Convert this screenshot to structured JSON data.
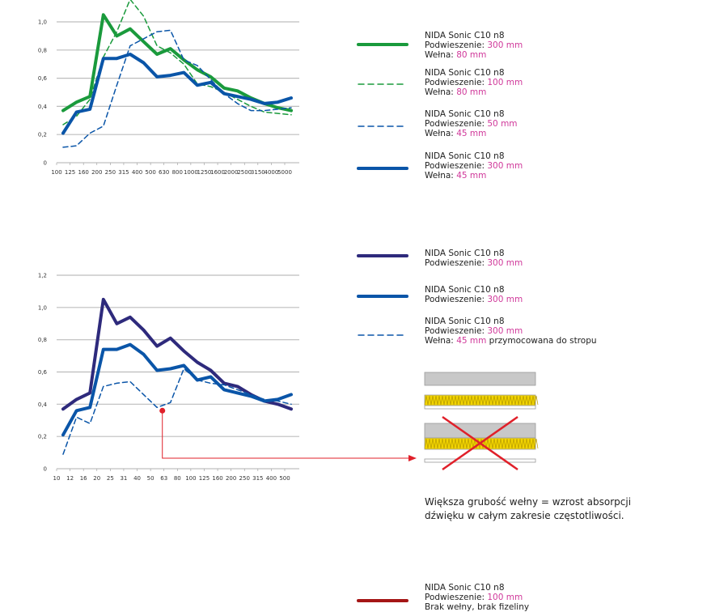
{
  "colors": {
    "green": "#1a9a3c",
    "blue": "#0a55a8",
    "purple": "#2e2a7c",
    "red": "#e0202a",
    "darkred": "#a51616",
    "magenta": "#d0389a",
    "grid": "#bdbdbd"
  },
  "chart_data": [
    {
      "type": "line",
      "ylim": [
        0,
        1.0
      ],
      "yticks": [
        "0",
        "0,2",
        "0,4",
        "0,6",
        "0,8",
        "1,0"
      ],
      "categories": [
        "100",
        "125",
        "160",
        "200",
        "250",
        "315",
        "400",
        "500",
        "630",
        "800",
        "1000",
        "1250",
        "1600",
        "2000",
        "2500",
        "3150",
        "4000",
        "5000"
      ],
      "series": [
        {
          "name": "NIDA Sonic C10 n8 / Podwieszenie: 300 mm / Wełna: 80 mm",
          "color": "green",
          "style": "solid",
          "width": 4,
          "values": [
            0.37,
            0.43,
            0.47,
            1.05,
            0.9,
            0.95,
            0.86,
            0.77,
            0.81,
            0.73,
            0.66,
            0.61,
            0.53,
            0.51,
            0.46,
            0.42,
            0.39,
            0.37
          ]
        },
        {
          "name": "NIDA Sonic C10 n8 / Podwieszenie: 100 mm / Wełna: 80 mm",
          "color": "green",
          "style": "dashed",
          "width": 1.5,
          "values": [
            0.27,
            0.33,
            0.45,
            0.75,
            0.93,
            1.16,
            1.04,
            0.83,
            0.78,
            0.7,
            0.56,
            0.54,
            0.5,
            0.45,
            0.4,
            0.36,
            0.35,
            0.34
          ]
        },
        {
          "name": "NIDA Sonic C10 n8 / Podwieszenie: 50 mm / Wełna: 45 mm",
          "color": "blue",
          "style": "dashed",
          "width": 1.5,
          "values": [
            0.11,
            0.12,
            0.21,
            0.26,
            0.55,
            0.83,
            0.88,
            0.93,
            0.94,
            0.73,
            0.69,
            0.59,
            0.49,
            0.42,
            0.37,
            0.37,
            0.38,
            0.39
          ]
        },
        {
          "name": "NIDA Sonic C10 n8 / Podwieszenie: 300 mm / Wełna: 45 mm",
          "color": "blue",
          "style": "solid",
          "width": 4,
          "values": [
            0.21,
            0.36,
            0.38,
            0.74,
            0.74,
            0.77,
            0.71,
            0.61,
            0.62,
            0.64,
            0.55,
            0.57,
            0.49,
            0.47,
            0.45,
            0.42,
            0.43,
            0.46
          ]
        }
      ]
    },
    {
      "type": "line",
      "ylim": [
        0,
        1.2
      ],
      "yticks": [
        "0",
        "0,2",
        "0,4",
        "0,6",
        "0,8",
        "1,0",
        "1,2"
      ],
      "categories": [
        "10",
        "12",
        "16",
        "20",
        "25",
        "31",
        "40",
        "50",
        "63",
        "80",
        "100",
        "125",
        "160",
        "200",
        "250",
        "315",
        "400",
        "500"
      ],
      "annotation": {
        "category_index": 8,
        "value": 0.36,
        "note": "red marker linked by arrow to diagram"
      },
      "series": [
        {
          "name": "NIDA Sonic C10 n8 / Podwieszenie: 300 mm",
          "color": "purple",
          "style": "solid",
          "width": 4,
          "values": [
            0.37,
            0.43,
            0.47,
            1.05,
            0.9,
            0.94,
            0.86,
            0.76,
            0.81,
            0.73,
            0.66,
            0.61,
            0.53,
            0.51,
            0.46,
            0.42,
            0.4,
            0.37
          ]
        },
        {
          "name": "NIDA Sonic C10 n8 / Podwieszenie: 300 mm",
          "color": "blue",
          "style": "solid",
          "width": 4,
          "values": [
            0.21,
            0.36,
            0.38,
            0.74,
            0.74,
            0.77,
            0.71,
            0.61,
            0.62,
            0.64,
            0.55,
            0.57,
            0.49,
            0.47,
            0.45,
            0.42,
            0.43,
            0.46
          ]
        },
        {
          "name": "NIDA Sonic C10 n8 / Podwieszenie: 300 mm / Wełna: 45 mm przymocowana do stropu",
          "color": "blue",
          "style": "dashed",
          "width": 1.5,
          "values": [
            0.09,
            0.32,
            0.28,
            0.51,
            0.53,
            0.54,
            0.46,
            0.38,
            0.41,
            0.62,
            0.55,
            0.53,
            0.52,
            0.49,
            0.46,
            0.43,
            0.42,
            0.4
          ]
        }
      ]
    }
  ],
  "legend1": [
    {
      "title": "NIDA Sonic C10 n8",
      "l1": "Podwieszenie: ",
      "v1": "300 mm",
      "l2": "Wełna: ",
      "v2": "80 mm"
    },
    {
      "title": "NIDA Sonic C10 n8",
      "l1": "Podwieszenie: ",
      "v1": "100 mm",
      "l2": "Wełna: ",
      "v2": "80 mm"
    },
    {
      "title": "NIDA Sonic C10 n8",
      "l1": "Podwieszenie: ",
      "v1": "50 mm",
      "l2": "Wełna: ",
      "v2": "45 mm"
    },
    {
      "title": "NIDA Sonic C10 n8",
      "l1": "Podwieszenie: ",
      "v1": "300 mm",
      "l2": "Wełna: ",
      "v2": "45 mm"
    }
  ],
  "legend2": [
    {
      "title": "NIDA Sonic C10 n8",
      "l1": "Podwieszenie: ",
      "v1": "300 mm"
    },
    {
      "title": "NIDA Sonic C10 n8",
      "l1": "Podwieszenie: ",
      "v1": "300 mm"
    },
    {
      "title": "NIDA Sonic C10 n8",
      "l1": "Podwieszenie: ",
      "v1": "300 mm",
      "l2": "Wełna: ",
      "v2": "45 mm",
      "l2b": " przymocowana do stropu"
    }
  ],
  "note": {
    "line1": "Większa grubość wełny = wzrost absorpcji",
    "line2": "dźwięku w całym zakresie częstotliwości."
  },
  "legend3": {
    "title": "NIDA Sonic C10 n8",
    "l1": "Podwieszenie: ",
    "v1": "100 mm",
    "l2": "Brak wełny, brak fizeliny"
  }
}
